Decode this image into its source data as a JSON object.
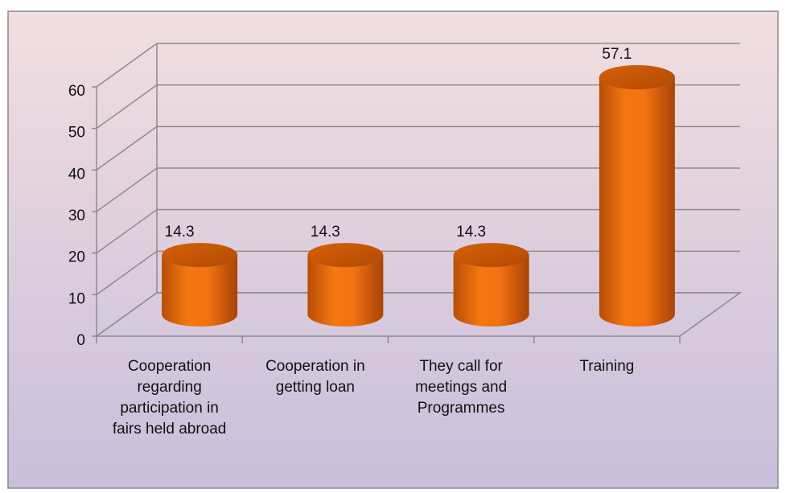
{
  "chart_data": {
    "type": "bar3d-cylinder",
    "categories": [
      "Cooperation regarding participation in fairs held abroad",
      "Cooperation in getting loan",
      "They call for meetings and Programmes",
      "Training"
    ],
    "values": [
      14.3,
      14.3,
      14.3,
      57.1
    ],
    "color": "#f07010",
    "ylim": [
      0,
      60
    ],
    "yticks": [
      0,
      10,
      20,
      30,
      40,
      50,
      60
    ],
    "grid": true
  }
}
